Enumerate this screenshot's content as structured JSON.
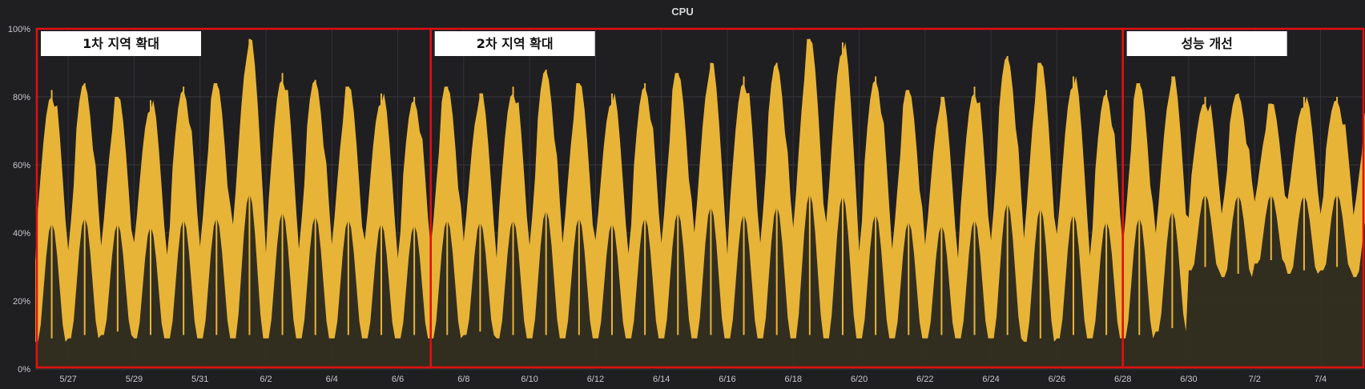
{
  "chart_data": {
    "type": "area",
    "title": "CPU",
    "xlabel": "",
    "ylabel": "",
    "x_start": "5/26",
    "x_end": "7/4",
    "ylim": [
      0,
      100
    ],
    "y_ticks": [
      "0%",
      "20%",
      "40%",
      "60%",
      "80%",
      "100%"
    ],
    "x_ticks": [
      "5/27",
      "5/29",
      "5/31",
      "6/2",
      "6/4",
      "6/6",
      "6/8",
      "6/10",
      "6/12",
      "6/14",
      "6/16",
      "6/18",
      "6/20",
      "6/22",
      "6/24",
      "6/26",
      "6/28",
      "6/30",
      "7/2",
      "7/4"
    ],
    "grid": true,
    "series_color": "#e8b437",
    "fill_color": "#34301f",
    "series": [
      {
        "daily_min": [
          9,
          10,
          11,
          10,
          10,
          10,
          10,
          10,
          10,
          10,
          10,
          10,
          10,
          11,
          10,
          10,
          10,
          10,
          10,
          10,
          10,
          10,
          10,
          10,
          10,
          10,
          10,
          10,
          10,
          10,
          9,
          10,
          10,
          10,
          12,
          30,
          28,
          32,
          29,
          30,
          28,
          28
        ],
        "daily_max": [
          82,
          84,
          80,
          79,
          83,
          84,
          97,
          87,
          85,
          83,
          81,
          80,
          83,
          81,
          83,
          88,
          84,
          81,
          84,
          87,
          90,
          86,
          90,
          97,
          96,
          86,
          82,
          80,
          83,
          92,
          90,
          86,
          82,
          84,
          86,
          80,
          81,
          78,
          80,
          80,
          77,
          75
        ]
      }
    ],
    "annotations": [
      {
        "label": "1차 지역 확대",
        "from": "5/26",
        "to": "6/7"
      },
      {
        "label": "2차 지역 확대",
        "from": "6/7",
        "to": "6/28"
      },
      {
        "label": "성능 개선",
        "from": "6/28",
        "to": "7/4"
      }
    ],
    "annotation_color": "#e01010"
  }
}
